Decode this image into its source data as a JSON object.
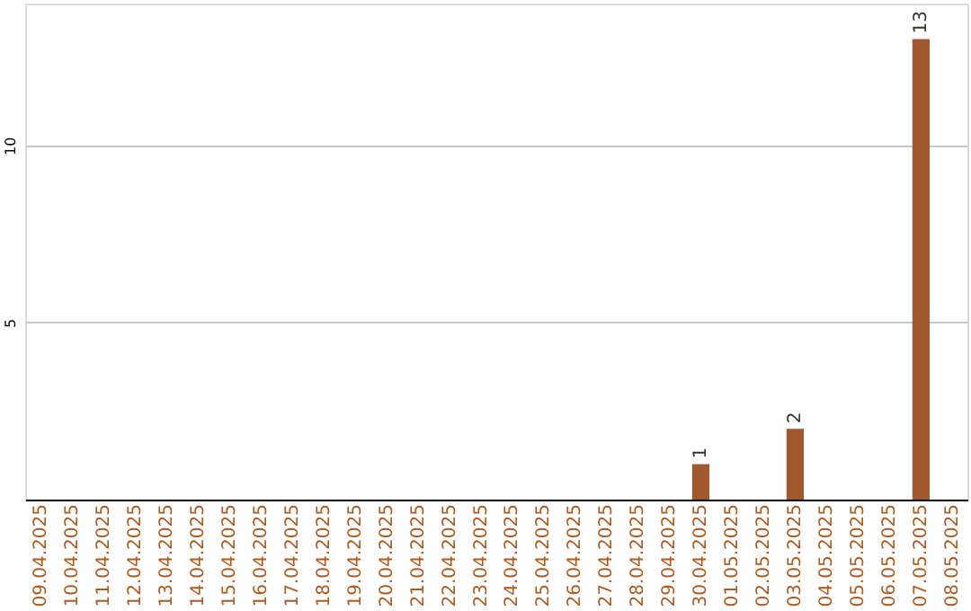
{
  "chart_data": {
    "type": "bar",
    "categories": [
      "09.04.2025",
      "10.04.2025",
      "11.04.2025",
      "12.04.2025",
      "13.04.2025",
      "14.04.2025",
      "15.04.2025",
      "16.04.2025",
      "17.04.2025",
      "18.04.2025",
      "19.04.2025",
      "20.04.2025",
      "21.04.2025",
      "22.04.2025",
      "23.04.2025",
      "24.04.2025",
      "25.04.2025",
      "26.04.2025",
      "27.04.2025",
      "28.04.2025",
      "29.04.2025",
      "30.04.2025",
      "01.05.2025",
      "02.05.2025",
      "03.05.2025",
      "04.05.2025",
      "05.05.2025",
      "06.05.2025",
      "07.05.2025",
      "08.05.2025"
    ],
    "values": [
      0,
      0,
      0,
      0,
      0,
      0,
      0,
      0,
      0,
      0,
      0,
      0,
      0,
      0,
      0,
      0,
      0,
      0,
      0,
      0,
      0,
      1,
      0,
      0,
      2,
      0,
      0,
      0,
      13,
      0
    ],
    "value_labels": [
      null,
      null,
      null,
      null,
      null,
      null,
      null,
      null,
      null,
      null,
      null,
      null,
      null,
      null,
      null,
      null,
      null,
      null,
      null,
      null,
      null,
      "1",
      null,
      null,
      "2",
      null,
      null,
      null,
      "13",
      null
    ],
    "color": "#a0582c",
    "ylim": [
      0,
      14
    ],
    "yticks": [
      5,
      10
    ],
    "grid": "y"
  }
}
